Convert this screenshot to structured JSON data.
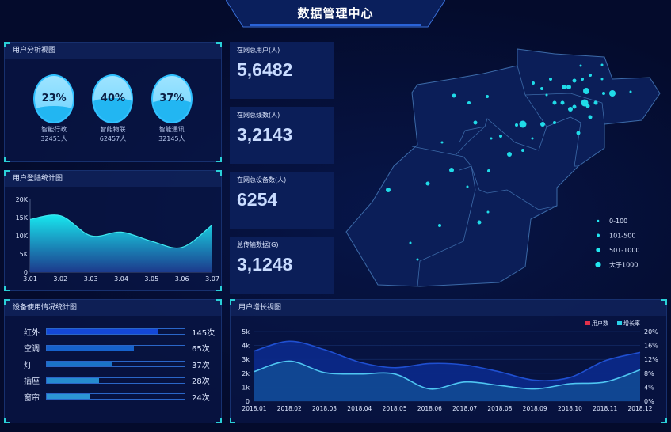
{
  "header": {
    "title": "数据管理中心"
  },
  "user_analysis": {
    "title": "用户分析视图",
    "items": [
      {
        "percent": "23%",
        "value": 23,
        "name": "智能行政",
        "count": "32451人"
      },
      {
        "percent": "40%",
        "value": 40,
        "name": "智能物联",
        "count": "62457人"
      },
      {
        "percent": "37%",
        "value": 37,
        "name": "智能通讯",
        "count": "32145人"
      }
    ]
  },
  "stats": [
    {
      "label": "在网总用户(人)",
      "value": "5,6482"
    },
    {
      "label": "在网总线数(人)",
      "value": "3,2143"
    },
    {
      "label": "在网总设备数(人)",
      "value": "6254"
    },
    {
      "label": "总传输数据(G)",
      "value": "3,1248"
    }
  ],
  "map": {
    "legend": [
      "0-100",
      "101-500",
      "501-1000",
      "大于1000"
    ],
    "dot_color": "#22e6f0",
    "region_fill": "#0b1e58",
    "region_stroke": "#3c6aa8"
  },
  "device_usage": {
    "title": "设备使用情况统计图",
    "items": [
      {
        "name": "红外",
        "value": "145次",
        "fill": 0.81,
        "color": "#1448d8"
      },
      {
        "name": "空调",
        "value": "65次",
        "fill": 0.63,
        "color": "#1662cc"
      },
      {
        "name": "灯",
        "value": "37次",
        "fill": 0.47,
        "color": "#1a74c8"
      },
      {
        "name": "插座",
        "value": "28次",
        "fill": 0.38,
        "color": "#268cd0"
      },
      {
        "name": "窗帘",
        "value": "24次",
        "fill": 0.31,
        "color": "#2c95d4"
      }
    ]
  },
  "chart_data": [
    {
      "type": "area",
      "title": "用户登陆统计图",
      "categories": [
        "3.01",
        "3.02",
        "3.03",
        "3.04",
        "3.05",
        "3.06",
        "3.07"
      ],
      "values": [
        14500,
        15500,
        10000,
        11000,
        8500,
        6800,
        13000
      ],
      "yticks": [
        "0",
        "5K",
        "10K",
        "15K",
        "20K"
      ],
      "ylim": [
        0,
        20000
      ],
      "colors": [
        "#18e6ee",
        "#1c3a8c"
      ]
    },
    {
      "type": "area",
      "title": "用户增长视图",
      "categories": [
        "2018.01",
        "2018.02",
        "2018.03",
        "2018.04",
        "2018.05",
        "2018.06",
        "2018.07",
        "2018.08",
        "2018.09",
        "2018.10",
        "2018.11",
        "2018.12"
      ],
      "series": [
        {
          "name": "用户数",
          "axis": "left",
          "values": [
            3600,
            4300,
            3700,
            2800,
            2400,
            2700,
            2600,
            2100,
            1500,
            1700,
            2900,
            3500
          ],
          "legend_color": "#e0304a",
          "line_color": "#1f4fd0"
        },
        {
          "name": "增长率",
          "axis": "right",
          "values": [
            8.5,
            11.5,
            8.2,
            7.8,
            7.8,
            3.5,
            5.5,
            4.5,
            3.5,
            5,
            5.5,
            9
          ],
          "legend_color": "#2ad0e8",
          "line_color": "#4fc6f2"
        }
      ],
      "yticks_left": [
        "0",
        "1k",
        "2k",
        "3k",
        "4k",
        "5k"
      ],
      "yticks_right": [
        "0%",
        "4%",
        "8%",
        "12%",
        "16%",
        "20%"
      ],
      "ylim_left": [
        0,
        5000
      ],
      "ylim_right": [
        0,
        20
      ]
    }
  ]
}
